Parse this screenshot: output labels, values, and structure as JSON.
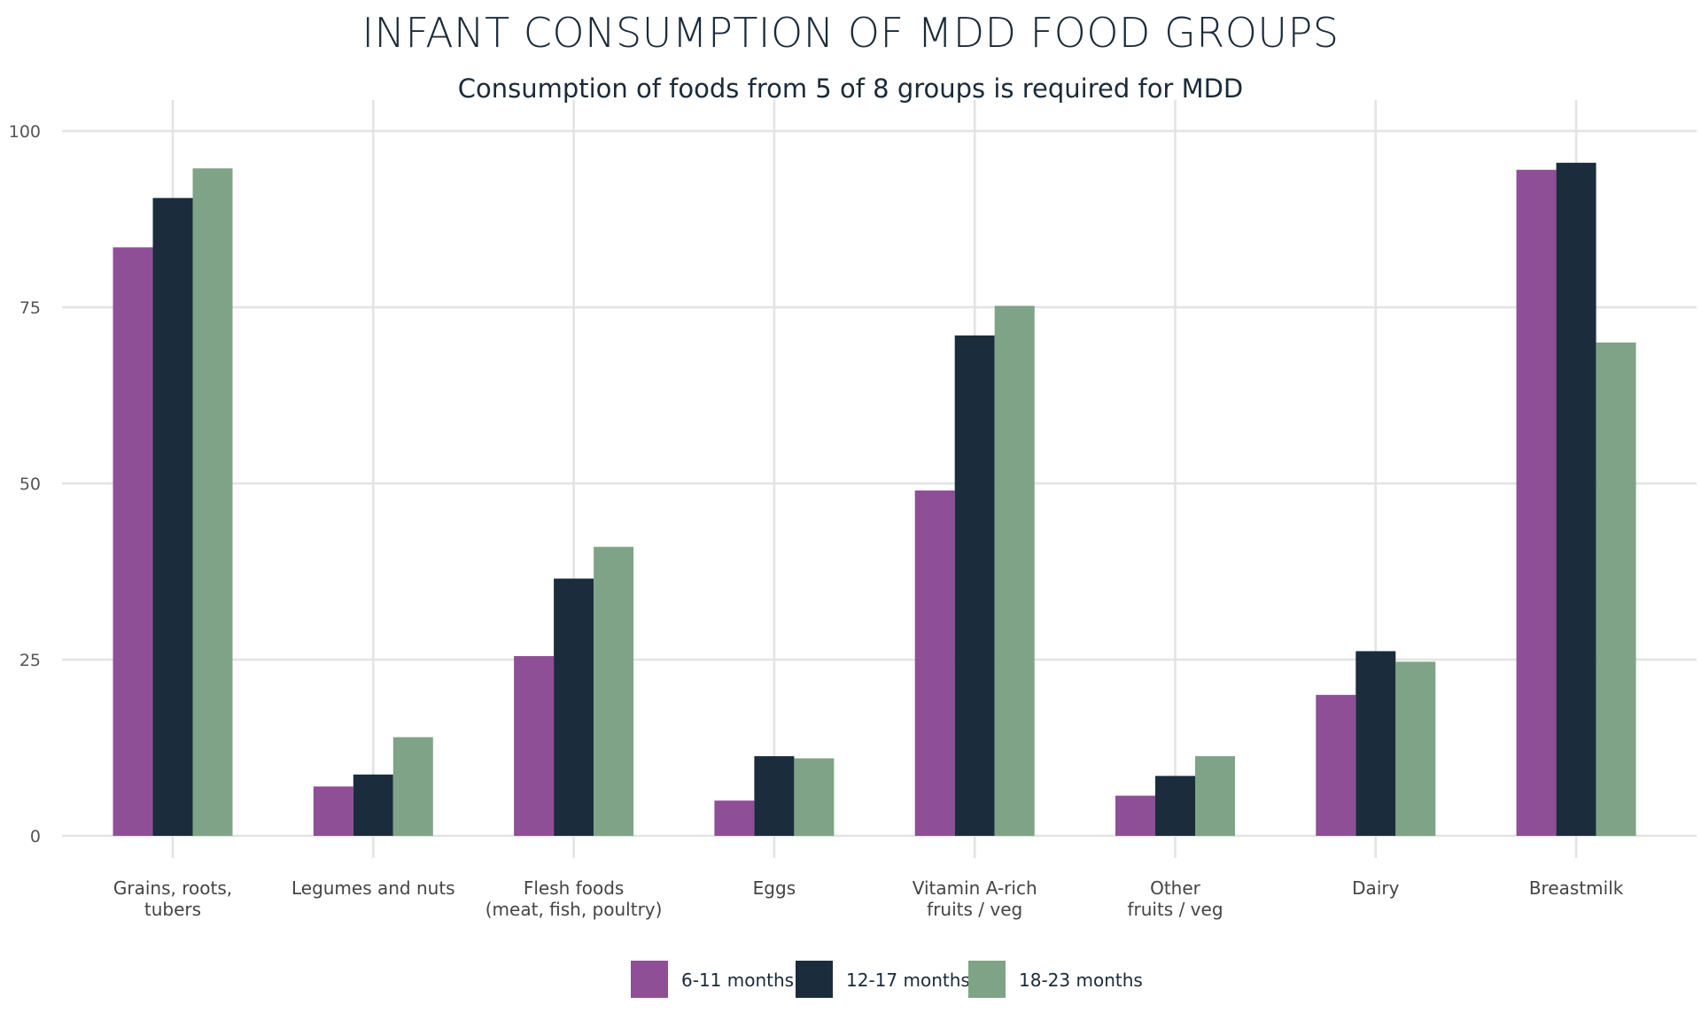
{
  "chart_data": {
    "type": "bar",
    "title": "INFANT CONSUMPTION OF MDD FOOD GROUPS",
    "subtitle": "Consumption of foods from 5 of 8 groups is required for MDD",
    "xlabel": "",
    "ylabel": "",
    "ylim": [
      0,
      105
    ],
    "yticks": [
      0,
      25,
      50,
      75,
      100
    ],
    "grid": true,
    "legend_position": "bottom",
    "categories": [
      [
        "Grains, roots,",
        "tubers"
      ],
      [
        "Legumes and nuts"
      ],
      [
        "Flesh foods",
        "(meat, fish, poultry)"
      ],
      [
        "Eggs"
      ],
      [
        "Vitamin A-rich",
        "fruits / veg"
      ],
      [
        "Other",
        "fruits / veg"
      ],
      [
        "Dairy"
      ],
      [
        "Breastmilk"
      ]
    ],
    "series": [
      {
        "name": "6-11 months",
        "color": "#8e4f96",
        "values": [
          83.5,
          7,
          25.5,
          5,
          49,
          5.7,
          20,
          94.5
        ]
      },
      {
        "name": "12-17 months",
        "color": "#1b2d3c",
        "values": [
          90.5,
          8.7,
          36.5,
          11.3,
          71,
          8.5,
          26.2,
          95.5
        ]
      },
      {
        "name": "18-23 months",
        "color": "#7fa386",
        "values": [
          94.7,
          14,
          41,
          11,
          75.2,
          11.3,
          24.7,
          70
        ]
      }
    ]
  }
}
